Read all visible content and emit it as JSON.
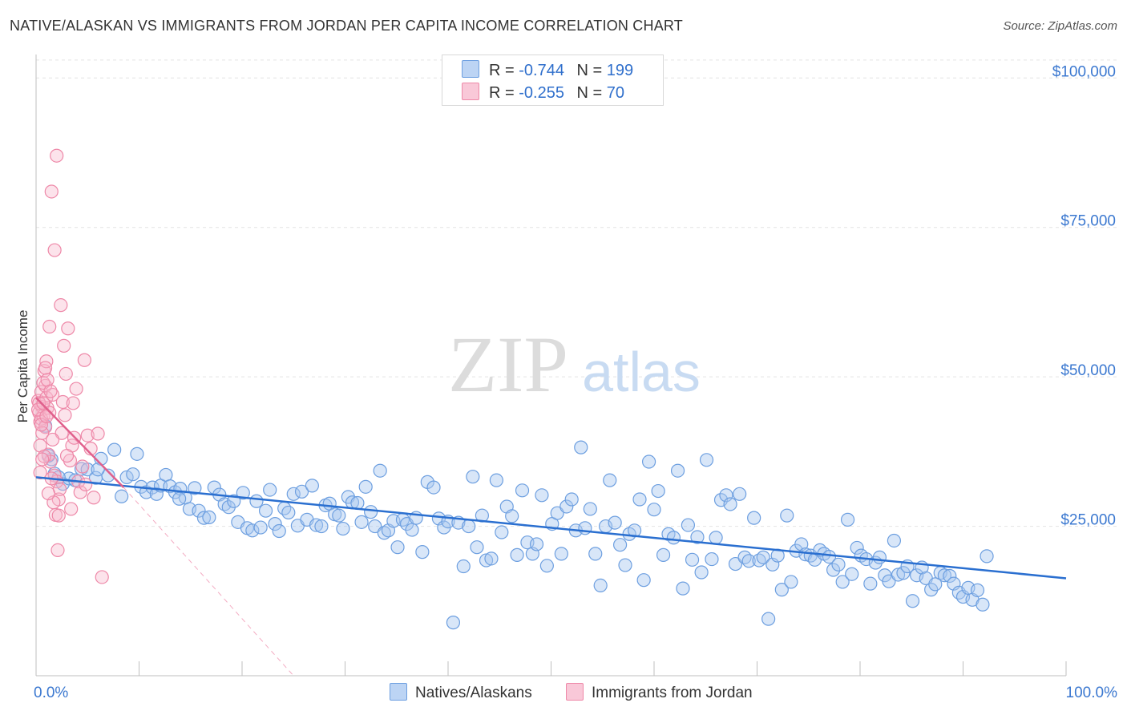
{
  "title": "NATIVE/ALASKAN VS IMMIGRANTS FROM JORDAN PER CAPITA INCOME CORRELATION CHART",
  "source": "Source: ZipAtlas.com",
  "watermark": {
    "zip": "ZIP",
    "atlas": "atlas"
  },
  "legend": {
    "rows": [
      {
        "r_label": "R =",
        "r_value": "-0.744",
        "n_label": "N =",
        "n_value": "199",
        "color": "#a9c8f0"
      },
      {
        "r_label": "R =",
        "r_value": "-0.255",
        "n_label": "N =",
        "n_value": "70",
        "color": "#f7b8cc"
      }
    ]
  },
  "bottom_legend": {
    "natives": "Natives/Alaskans",
    "jordan": "Immigrants from Jordan"
  },
  "chart_data": {
    "type": "scatter",
    "ylabel": "Per Capita Income",
    "xlim": [
      0,
      100
    ],
    "ylim": [
      0,
      105000
    ],
    "x_tick_labels": [
      "0.0%",
      "100.0%"
    ],
    "y_ticks": [
      {
        "value": 25000,
        "label": "$25,000"
      },
      {
        "value": 50000,
        "label": "$50,000"
      },
      {
        "value": 75000,
        "label": "$75,000"
      },
      {
        "value": 100000,
        "label": "$100,000"
      }
    ],
    "colors": {
      "natives": "#6d9fe0",
      "natives_fill": "#a9c8f0",
      "natives_line": "#2a6fd0",
      "jordan": "#ee88a8",
      "jordan_fill": "#f7b8cc",
      "jordan_line": "#e0608c"
    },
    "series": [
      {
        "name": "Natives/Alaskans",
        "trend": {
          "x0": 0,
          "y0": 33200,
          "x1": 100,
          "y1": 16300
        },
        "points": [
          [
            0.9,
            41800
          ],
          [
            1.5,
            36200
          ],
          [
            1.8,
            33800
          ],
          [
            2.6,
            32100
          ],
          [
            3.2,
            33000
          ],
          [
            3.8,
            32700
          ],
          [
            4.4,
            34600
          ],
          [
            5.0,
            34500
          ],
          [
            5.8,
            33100
          ],
          [
            6.3,
            36300
          ],
          [
            7.0,
            33500
          ],
          [
            7.6,
            37800
          ],
          [
            8.3,
            30000
          ],
          [
            8.8,
            33200
          ],
          [
            9.4,
            33700
          ],
          [
            9.8,
            37100
          ],
          [
            10.2,
            31600
          ],
          [
            10.7,
            30700
          ],
          [
            11.3,
            31500
          ],
          [
            11.7,
            30400
          ],
          [
            12.1,
            31800
          ],
          [
            12.6,
            33600
          ],
          [
            13.0,
            31700
          ],
          [
            13.5,
            30700
          ],
          [
            14.0,
            31300
          ],
          [
            14.5,
            29800
          ],
          [
            14.9,
            27900
          ],
          [
            15.4,
            31400
          ],
          [
            15.8,
            27600
          ],
          [
            16.3,
            26400
          ],
          [
            16.8,
            26500
          ],
          [
            17.3,
            31500
          ],
          [
            17.8,
            30300
          ],
          [
            18.3,
            28700
          ],
          [
            18.7,
            28200
          ],
          [
            19.2,
            29200
          ],
          [
            19.6,
            25700
          ],
          [
            20.1,
            30600
          ],
          [
            20.5,
            24700
          ],
          [
            21.0,
            24300
          ],
          [
            21.4,
            29200
          ],
          [
            21.8,
            24800
          ],
          [
            22.3,
            27600
          ],
          [
            22.7,
            31100
          ],
          [
            23.2,
            25400
          ],
          [
            23.6,
            24200
          ],
          [
            24.1,
            28000
          ],
          [
            24.5,
            27300
          ],
          [
            25.0,
            30400
          ],
          [
            25.4,
            25100
          ],
          [
            25.8,
            30800
          ],
          [
            26.3,
            26100
          ],
          [
            26.8,
            31800
          ],
          [
            27.2,
            25200
          ],
          [
            27.7,
            25000
          ],
          [
            28.1,
            28500
          ],
          [
            28.5,
            28800
          ],
          [
            29.0,
            27000
          ],
          [
            29.4,
            26800
          ],
          [
            29.8,
            24600
          ],
          [
            30.3,
            29900
          ],
          [
            30.7,
            29000
          ],
          [
            31.2,
            28900
          ],
          [
            31.6,
            25700
          ],
          [
            32.0,
            31600
          ],
          [
            32.5,
            27400
          ],
          [
            32.9,
            25000
          ],
          [
            33.4,
            34300
          ],
          [
            33.8,
            23900
          ],
          [
            34.2,
            24300
          ],
          [
            34.7,
            25900
          ],
          [
            35.1,
            21500
          ],
          [
            35.6,
            26100
          ],
          [
            36.0,
            25400
          ],
          [
            36.5,
            24400
          ],
          [
            36.9,
            26400
          ],
          [
            37.5,
            20700
          ],
          [
            38.0,
            32400
          ],
          [
            38.6,
            31500
          ],
          [
            39.1,
            26300
          ],
          [
            39.6,
            24800
          ],
          [
            40.0,
            25800
          ],
          [
            40.5,
            8900
          ],
          [
            41.0,
            25600
          ],
          [
            41.5,
            18300
          ],
          [
            42.0,
            25000
          ],
          [
            42.4,
            33300
          ],
          [
            42.8,
            21500
          ],
          [
            43.3,
            26800
          ],
          [
            43.7,
            19300
          ],
          [
            44.2,
            19600
          ],
          [
            44.7,
            32700
          ],
          [
            45.2,
            24000
          ],
          [
            45.7,
            28300
          ],
          [
            46.2,
            26700
          ],
          [
            46.7,
            20200
          ],
          [
            47.2,
            31000
          ],
          [
            47.7,
            22300
          ],
          [
            48.2,
            20400
          ],
          [
            48.6,
            22000
          ],
          [
            49.1,
            30200
          ],
          [
            49.6,
            18400
          ],
          [
            50.1,
            25400
          ],
          [
            50.6,
            27200
          ],
          [
            51.0,
            20400
          ],
          [
            51.5,
            28300
          ],
          [
            52.0,
            29500
          ],
          [
            52.4,
            24300
          ],
          [
            52.9,
            38200
          ],
          [
            53.3,
            24700
          ],
          [
            53.8,
            27900
          ],
          [
            54.3,
            20400
          ],
          [
            54.8,
            15100
          ],
          [
            55.3,
            25000
          ],
          [
            55.7,
            32700
          ],
          [
            56.2,
            25600
          ],
          [
            56.7,
            21900
          ],
          [
            57.2,
            18500
          ],
          [
            57.6,
            23700
          ],
          [
            58.1,
            24300
          ],
          [
            58.6,
            29500
          ],
          [
            59.0,
            16000
          ],
          [
            59.5,
            35800
          ],
          [
            60.0,
            27800
          ],
          [
            60.4,
            30900
          ],
          [
            60.9,
            20200
          ],
          [
            61.4,
            23700
          ],
          [
            61.9,
            23100
          ],
          [
            62.3,
            34300
          ],
          [
            62.8,
            14600
          ],
          [
            63.3,
            25200
          ],
          [
            63.7,
            19400
          ],
          [
            64.2,
            23200
          ],
          [
            64.6,
            17300
          ],
          [
            65.1,
            36100
          ],
          [
            65.6,
            19500
          ],
          [
            66.0,
            23100
          ],
          [
            66.5,
            29400
          ],
          [
            67.0,
            30200
          ],
          [
            67.4,
            28700
          ],
          [
            67.9,
            18700
          ],
          [
            68.3,
            30400
          ],
          [
            68.8,
            19800
          ],
          [
            69.2,
            19200
          ],
          [
            69.7,
            26400
          ],
          [
            70.2,
            19300
          ],
          [
            70.6,
            19800
          ],
          [
            71.1,
            9500
          ],
          [
            71.5,
            18600
          ],
          [
            72.0,
            20100
          ],
          [
            72.4,
            14400
          ],
          [
            72.9,
            26800
          ],
          [
            73.3,
            15700
          ],
          [
            73.8,
            20900
          ],
          [
            74.3,
            22000
          ],
          [
            74.7,
            20300
          ],
          [
            75.2,
            20100
          ],
          [
            75.6,
            19400
          ],
          [
            76.1,
            21000
          ],
          [
            76.5,
            20400
          ],
          [
            77.0,
            19900
          ],
          [
            77.4,
            17700
          ],
          [
            77.9,
            18600
          ],
          [
            78.3,
            15700
          ],
          [
            78.8,
            26100
          ],
          [
            79.2,
            17000
          ],
          [
            79.7,
            21400
          ],
          [
            80.1,
            20100
          ],
          [
            80.6,
            19500
          ],
          [
            81.0,
            15400
          ],
          [
            81.5,
            18900
          ],
          [
            81.9,
            19800
          ],
          [
            82.4,
            16800
          ],
          [
            82.8,
            15800
          ],
          [
            83.3,
            22600
          ],
          [
            83.7,
            16900
          ],
          [
            84.2,
            17200
          ],
          [
            84.6,
            18300
          ],
          [
            85.1,
            12500
          ],
          [
            85.5,
            16800
          ],
          [
            86.0,
            18100
          ],
          [
            86.4,
            16300
          ],
          [
            86.9,
            14400
          ],
          [
            87.3,
            15300
          ],
          [
            87.8,
            17200
          ],
          [
            88.2,
            16800
          ],
          [
            88.7,
            16700
          ],
          [
            89.1,
            15400
          ],
          [
            89.6,
            13900
          ],
          [
            90.0,
            13200
          ],
          [
            90.5,
            14700
          ],
          [
            90.9,
            12700
          ],
          [
            91.4,
            14300
          ],
          [
            91.9,
            11900
          ],
          [
            92.3,
            20000
          ],
          [
            6.0,
            34500
          ],
          [
            1.2,
            36800
          ],
          [
            2.2,
            33200
          ],
          [
            13.9,
            29600
          ]
        ]
      },
      {
        "name": "Immigrants from Jordan",
        "trend": {
          "x0": 0,
          "y0": 46500,
          "x1": 8.5,
          "y1": 31500
        },
        "trend_ext": {
          "x0": 8.5,
          "y0": 31500,
          "x1": 25,
          "y1": 0
        },
        "points": [
          [
            0.2,
            46000
          ],
          [
            0.3,
            44000
          ],
          [
            0.4,
            42500
          ],
          [
            0.5,
            47500
          ],
          [
            0.6,
            45000
          ],
          [
            0.7,
            43500
          ],
          [
            0.8,
            51000
          ],
          [
            0.9,
            48500
          ],
          [
            1.0,
            46500
          ],
          [
            1.1,
            44800
          ],
          [
            0.3,
            45600
          ],
          [
            0.5,
            43000
          ],
          [
            0.7,
            49000
          ],
          [
            0.9,
            41600
          ],
          [
            1.2,
            37000
          ],
          [
            1.4,
            35800
          ],
          [
            1.6,
            47000
          ],
          [
            1.8,
            33500
          ],
          [
            2.0,
            32500
          ],
          [
            2.2,
            29500
          ],
          [
            0.4,
            38500
          ],
          [
            0.6,
            40600
          ],
          [
            0.8,
            36700
          ],
          [
            1.0,
            52600
          ],
          [
            1.3,
            58400
          ],
          [
            1.5,
            33000
          ],
          [
            1.7,
            29000
          ],
          [
            1.9,
            26900
          ],
          [
            2.1,
            21000
          ],
          [
            2.3,
            31200
          ],
          [
            0.2,
            44500
          ],
          [
            0.5,
            42000
          ],
          [
            0.7,
            45600
          ],
          [
            1.1,
            49500
          ],
          [
            1.3,
            44000
          ],
          [
            1.5,
            81000
          ],
          [
            1.8,
            71200
          ],
          [
            2.0,
            87000
          ],
          [
            2.4,
            62000
          ],
          [
            2.6,
            45800
          ],
          [
            2.7,
            55200
          ],
          [
            2.9,
            50500
          ],
          [
            3.1,
            58100
          ],
          [
            3.3,
            36000
          ],
          [
            3.5,
            38500
          ],
          [
            3.7,
            39800
          ],
          [
            3.9,
            48000
          ],
          [
            4.1,
            32500
          ],
          [
            4.3,
            30700
          ],
          [
            4.5,
            35000
          ],
          [
            4.7,
            52800
          ],
          [
            5.0,
            40200
          ],
          [
            5.3,
            38000
          ],
          [
            5.6,
            29800
          ],
          [
            6.0,
            40500
          ],
          [
            6.4,
            16500
          ],
          [
            3.0,
            36800
          ],
          [
            2.5,
            40600
          ],
          [
            1.6,
            39500
          ],
          [
            1.0,
            43400
          ],
          [
            0.6,
            36200
          ],
          [
            0.4,
            34000
          ],
          [
            2.8,
            43600
          ],
          [
            3.6,
            45600
          ],
          [
            4.8,
            32000
          ],
          [
            1.2,
            30500
          ],
          [
            2.2,
            26800
          ],
          [
            3.4,
            27900
          ],
          [
            0.9,
            51500
          ],
          [
            1.4,
            47600
          ]
        ]
      }
    ]
  }
}
